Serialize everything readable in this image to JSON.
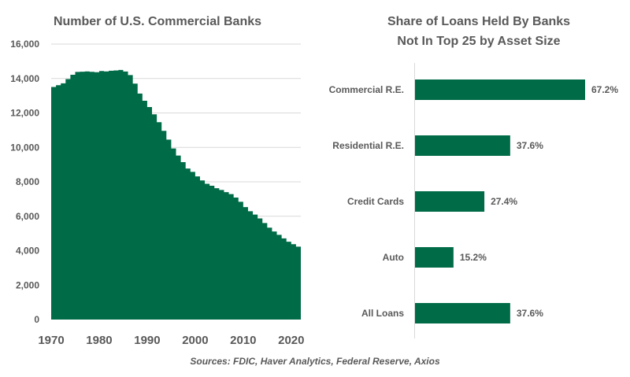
{
  "chart_data": [
    {
      "type": "area",
      "title": "Number of U.S. Commercial Banks",
      "xlabel": "",
      "ylabel": "",
      "xlim": [
        1970,
        2021
      ],
      "ylim": [
        0,
        16000
      ],
      "x_ticks": [
        "1970",
        "1980",
        "1990",
        "2000",
        "2010",
        "2020"
      ],
      "y_ticks": [
        "0",
        "2,000",
        "4,000",
        "6,000",
        "8,000",
        "10,000",
        "12,000",
        "14,000",
        "16,000"
      ],
      "grid": true,
      "color": "#006B47",
      "x": [
        1970,
        1971,
        1972,
        1973,
        1974,
        1975,
        1976,
        1977,
        1978,
        1979,
        1980,
        1981,
        1982,
        1983,
        1984,
        1985,
        1986,
        1987,
        1988,
        1989,
        1990,
        1991,
        1992,
        1993,
        1994,
        1995,
        1996,
        1997,
        1998,
        1999,
        2000,
        2001,
        2002,
        2003,
        2004,
        2005,
        2006,
        2007,
        2008,
        2009,
        2010,
        2011,
        2012,
        2013,
        2014,
        2015,
        2016,
        2017,
        2018,
        2019,
        2020,
        2021
      ],
      "values": [
        13511,
        13612,
        13721,
        13964,
        14216,
        14384,
        14397,
        14412,
        14391,
        14364,
        14434,
        14414,
        14451,
        14469,
        14496,
        14407,
        14199,
        13703,
        13123,
        12709,
        12343,
        11921,
        11462,
        10958,
        10451,
        9940,
        9528,
        9143,
        8774,
        8580,
        8315,
        8079,
        7887,
        7769,
        7630,
        7526,
        7401,
        7283,
        7086,
        6840,
        6530,
        6291,
        6096,
        5876,
        5607,
        5338,
        5112,
        4918,
        4715,
        4518,
        4377,
        4236
      ]
    },
    {
      "type": "bar",
      "orientation": "horizontal",
      "title": "Share of Loans Held By Banks Not In Top 25 by Asset Size",
      "title_lines": [
        "Share of Loans Held By Banks",
        "Not In Top 25 by Asset Size"
      ],
      "categories": [
        "Commercial R.E.",
        "Residential R.E.",
        "Credit Cards",
        "Auto",
        "All Loans"
      ],
      "values": [
        67.2,
        37.6,
        27.4,
        15.2,
        37.6
      ],
      "labels": [
        "67.2%",
        "37.6%",
        "27.4%",
        "15.2%",
        "37.6%"
      ],
      "unit": "%",
      "color": "#006B47",
      "grid": false
    }
  ],
  "source": "Sources: FDIC, Haver Analytics, Federal Reserve, Axios"
}
